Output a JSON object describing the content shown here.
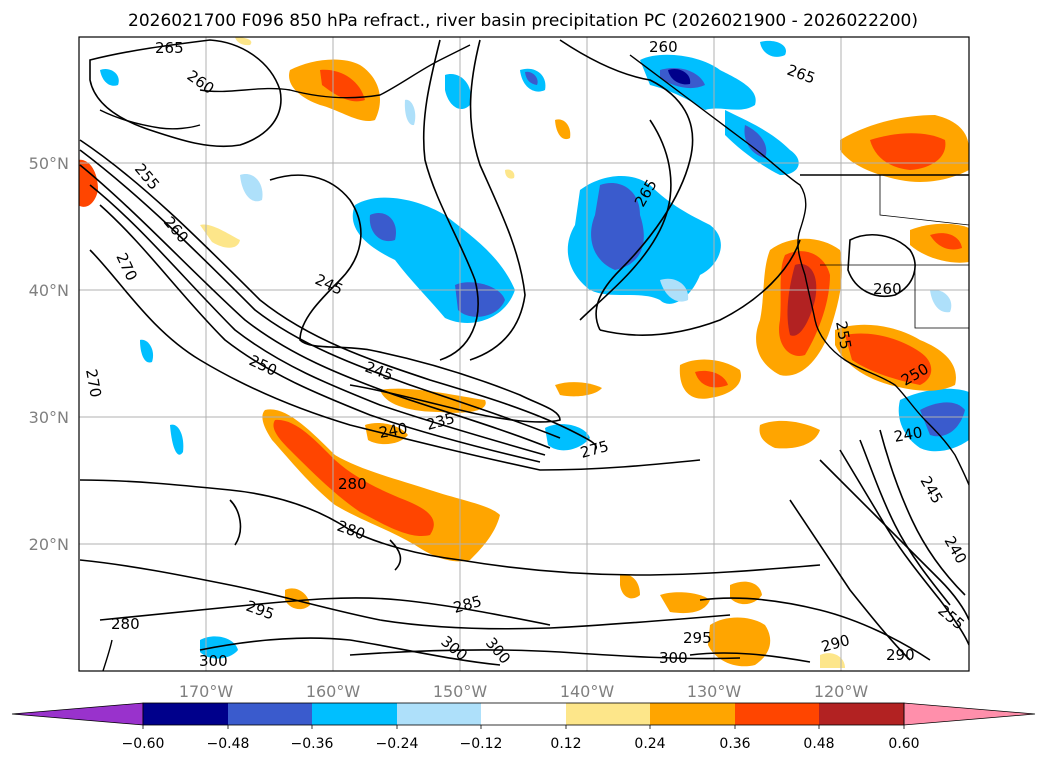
{
  "title": "2026021700 F096 850 hPa refract., river basin precipitation PC (2026021900 - 2026022200)",
  "lat_labels": [
    "50°N",
    "40°N",
    "30°N",
    "20°N"
  ],
  "lon_labels": [
    "170°W",
    "160°W",
    "150°W",
    "140°W",
    "130°W",
    "120°W"
  ],
  "contour_labels": [
    "265",
    "260",
    "255",
    "260",
    "270",
    "245",
    "250",
    "245",
    "235",
    "240",
    "270",
    "280",
    "280",
    "275",
    "265",
    "265",
    "260",
    "260",
    "255",
    "240",
    "245",
    "295",
    "285",
    "280",
    "300",
    "300",
    "300",
    "295",
    "300",
    "290",
    "290",
    "255",
    "240",
    "250"
  ],
  "colorbar": {
    "tick_labels": [
      "−0.60",
      "−0.48",
      "−0.36",
      "−0.24",
      "−0.12",
      "0.12",
      "0.24",
      "0.36",
      "0.48",
      "0.60"
    ],
    "colors": [
      "#9932cc",
      "#00008b",
      "#3a5bcd",
      "#00bfff",
      "#aee0fa",
      "#ffffff",
      "#fde68a",
      "#ffa500",
      "#ff4500",
      "#b22222",
      "#ff8fab"
    ]
  },
  "colors": {
    "grid": "#b0b0b0",
    "coast": "#000000"
  }
}
